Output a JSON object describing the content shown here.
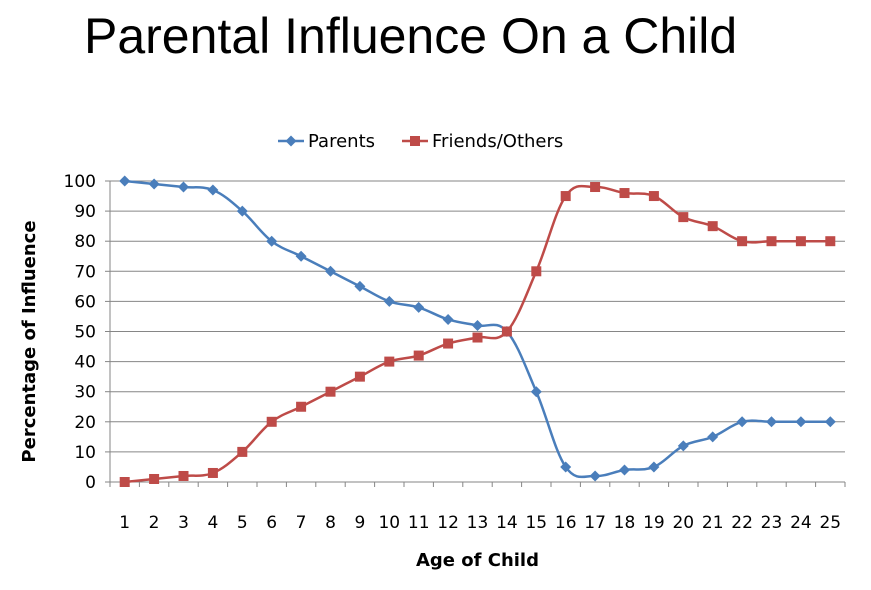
{
  "page": {
    "title": "Parental Influence On a Child"
  },
  "chart_data": {
    "type": "line",
    "title": "",
    "xlabel": "Age of Child",
    "ylabel": "Percentage of Influence",
    "x": [
      1,
      2,
      3,
      4,
      5,
      6,
      7,
      8,
      9,
      10,
      11,
      12,
      13,
      14,
      15,
      16,
      17,
      18,
      19,
      20,
      21,
      22,
      23,
      24,
      25
    ],
    "x_tick_labels": [
      "1",
      "2",
      "3",
      "4",
      "5",
      "6",
      "7",
      "8",
      "9",
      "10",
      "11",
      "12",
      "13",
      "14",
      "15",
      "16",
      "17",
      "18",
      "19",
      "20",
      "21",
      "22",
      "23",
      "24",
      "25"
    ],
    "y_ticks": [
      0,
      10,
      20,
      30,
      40,
      50,
      60,
      70,
      80,
      90,
      100
    ],
    "y_tick_labels": [
      "0",
      "10",
      "20",
      "30",
      "40",
      "50",
      "60",
      "70",
      "80",
      "90",
      "100"
    ],
    "ylim": [
      0,
      100
    ],
    "grid": true,
    "legend": "top",
    "smooth": true,
    "series": [
      {
        "name": "Parents",
        "color": "#4a7ebb",
        "marker": "diamond",
        "values": [
          100,
          99,
          98,
          97,
          90,
          80,
          75,
          70,
          65,
          60,
          58,
          54,
          52,
          50,
          30,
          5,
          2,
          4,
          5,
          12,
          15,
          20,
          20,
          20,
          20
        ]
      },
      {
        "name": "Friends/Others",
        "color": "#be4b48",
        "marker": "square",
        "values": [
          0,
          1,
          2,
          3,
          10,
          20,
          25,
          30,
          35,
          40,
          42,
          46,
          48,
          50,
          70,
          95,
          98,
          96,
          95,
          88,
          85,
          80,
          80,
          80,
          80
        ]
      }
    ]
  }
}
